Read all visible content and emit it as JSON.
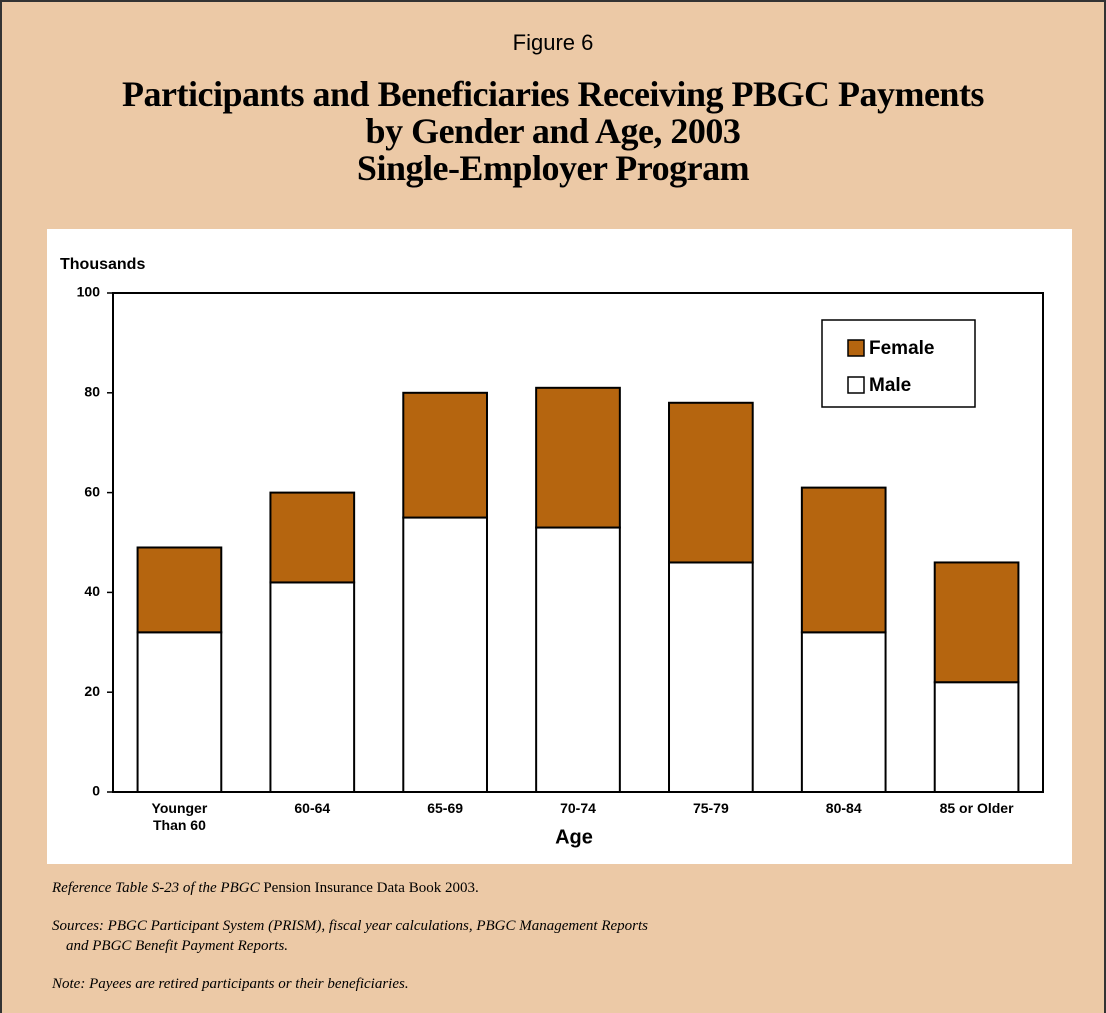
{
  "chart_data": {
    "type": "stacked_bar",
    "figure_label": "Figure 6",
    "title": [
      "Participants and Beneficiaries Receiving PBGC Payments",
      "by Gender and Age, 2003",
      "Single-Employer Program"
    ],
    "y_label": "Thousands",
    "x_label": "Age",
    "categories": [
      "Younger Than 60",
      "60-64",
      "65-69",
      "70-74",
      "75-79",
      "80-84",
      "85 or Older"
    ],
    "series": [
      {
        "name": "Male",
        "color": "#ffffff",
        "values": [
          32,
          42,
          55,
          53,
          46,
          32,
          22
        ]
      },
      {
        "name": "Female",
        "color": "#b5650f",
        "values": [
          17,
          18,
          25,
          28,
          32,
          29,
          24
        ]
      }
    ],
    "ylim": [
      0,
      100
    ],
    "yticks": [
      0,
      20,
      40,
      60,
      80,
      100
    ],
    "grid": false,
    "legend": "upper right"
  },
  "footnotes": {
    "reference_italic": "Reference Table S-23 of the PBGC",
    "reference_book": "Pension Insurance Data Book 2003.",
    "sources": [
      "Sources: PBGC Participant System (PRISM), fiscal year calculations, PBGC Management Reports",
      "and PBGC Benefit Payment Reports."
    ],
    "note": "Note: Payees are retired participants or their beneficiaries."
  }
}
